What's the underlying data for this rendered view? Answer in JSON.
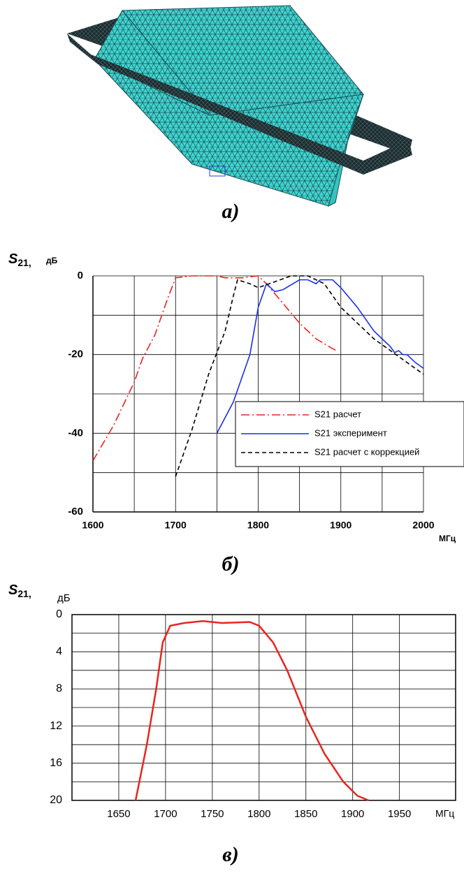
{
  "image_caption": "а)",
  "chart_data": [
    {
      "type": "line",
      "caption": "б)",
      "y_label_symbol": "S",
      "y_label_subscript": "21,",
      "y_label_unit": "дБ",
      "x_label": "МГц",
      "xlim": [
        1600,
        2000
      ],
      "xticks": [
        1600,
        1700,
        1800,
        1900,
        2000
      ],
      "x_minor_grid": [
        1650,
        1750,
        1850,
        1950
      ],
      "ylim": [
        -60,
        0
      ],
      "yticks": [
        -60,
        -40,
        -20,
        0
      ],
      "y_minor_grid": [
        -50,
        -30,
        -10
      ],
      "grid": true,
      "legend": "lower right",
      "series": [
        {
          "name": "S21 расчет",
          "color": "#e8251e",
          "dash": "dashdot",
          "x": [
            1600,
            1625,
            1650,
            1660,
            1675,
            1690,
            1700,
            1720,
            1750,
            1760,
            1780,
            1800,
            1810,
            1830,
            1850,
            1870,
            1890,
            1895
          ],
          "values": [
            -47,
            -38,
            -27,
            -21,
            -15,
            -6,
            -0.5,
            0,
            0,
            -0.5,
            -0.5,
            0,
            -2,
            -7,
            -12,
            -16,
            -18.5,
            -19
          ]
        },
        {
          "name": "S21 эксперимент",
          "color": "#1a2ff0",
          "dash": "solid",
          "x": [
            1750,
            1770,
            1790,
            1800,
            1810,
            1820,
            1830,
            1850,
            1860,
            1870,
            1875,
            1890,
            1900,
            1920,
            1940,
            1960,
            1965,
            1970,
            1975,
            1980,
            1990,
            2000
          ],
          "values": [
            -40,
            -32,
            -20,
            -8,
            -2,
            -4,
            -3.5,
            -1,
            -1,
            -2,
            -1,
            -1,
            -3,
            -8,
            -14,
            -18,
            -19.5,
            -19,
            -20,
            -20,
            -22,
            -23.5
          ]
        },
        {
          "name": "S21 расчет с коррекцией",
          "color": "#000000",
          "dash": "dashed",
          "x": [
            1700,
            1720,
            1740,
            1760,
            1770,
            1775,
            1790,
            1800,
            1820,
            1840,
            1860,
            1880,
            1900,
            1920,
            1940,
            1960,
            1980,
            2000
          ],
          "values": [
            -51,
            -39,
            -25,
            -14,
            -5,
            -1,
            -2,
            -3,
            -1.5,
            0,
            0,
            -2,
            -8,
            -12,
            -16,
            -19,
            -22,
            -25
          ]
        }
      ]
    },
    {
      "type": "line",
      "caption": "в)",
      "y_label_symbol": "S",
      "y_label_subscript": "21,",
      "y_label_unit": "дБ",
      "x_label": "МГц",
      "xlim": [
        1600,
        2010
      ],
      "xticks": [
        1650,
        1700,
        1750,
        1800,
        1850,
        1900,
        1950
      ],
      "ylim": [
        0,
        20
      ],
      "y_inverted": true,
      "yticks": [
        0,
        4,
        8,
        12,
        16,
        20
      ],
      "y_minor_grid": [
        2,
        6,
        10,
        14,
        18
      ],
      "grid": true,
      "series": [
        {
          "color": "#e8251e",
          "dash": "solid",
          "x": [
            1668,
            1680,
            1690,
            1697,
            1705,
            1720,
            1740,
            1760,
            1790,
            1800,
            1815,
            1830,
            1850,
            1870,
            1890,
            1905,
            1917
          ],
          "values": [
            20,
            14,
            8,
            3,
            1.2,
            0.9,
            0.7,
            0.9,
            0.8,
            1.2,
            3,
            6,
            11,
            15,
            18,
            19.5,
            20
          ]
        }
      ]
    }
  ]
}
